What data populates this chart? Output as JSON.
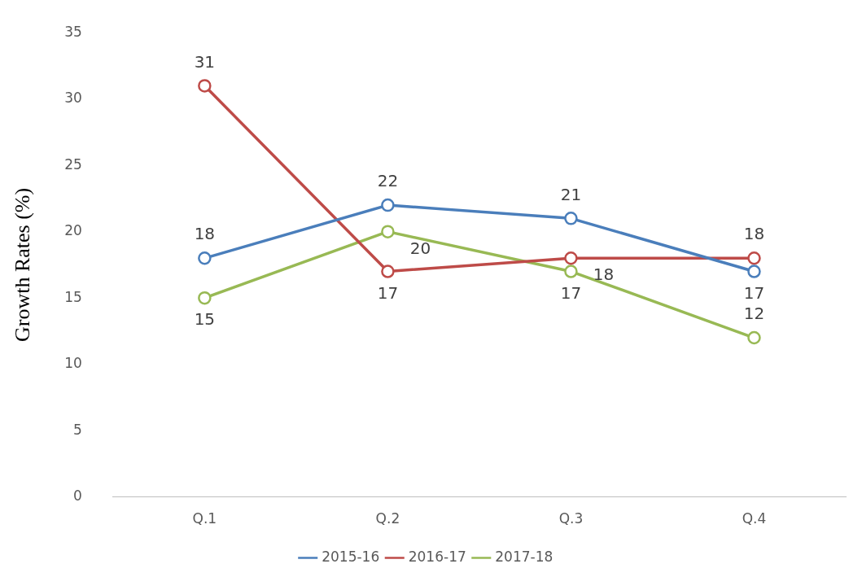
{
  "chart_data": {
    "type": "line",
    "ylabel": "Growth Rates (%)",
    "categories": [
      "Q.1",
      "Q.2",
      "Q.3",
      "Q.4"
    ],
    "series": [
      {
        "name": "2015-16",
        "color": "#4a7ebb",
        "values": [
          18,
          22,
          21,
          17
        ]
      },
      {
        "name": "2016-17",
        "color": "#be4b48",
        "values": [
          31,
          17,
          18,
          18
        ]
      },
      {
        "name": "2017-18",
        "color": "#98b954",
        "values": [
          15,
          20,
          17,
          12
        ]
      }
    ],
    "ylim": [
      0,
      35
    ],
    "yticks": [
      0,
      5,
      10,
      15,
      20,
      25,
      30,
      35
    ],
    "grid": false,
    "legend": "bottom",
    "marker": "circle",
    "line_style": "solid",
    "data_labels": true
  }
}
